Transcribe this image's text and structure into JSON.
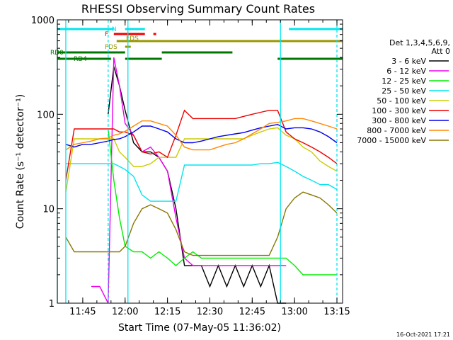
{
  "chart_data": {
    "type": "line",
    "title": "RHESSI Observing Summary Count Rates",
    "xlabel": "Start Time (07-May-05 11:36:02)",
    "ylabel": "Count Rate (s⁻¹ detector⁻¹)",
    "yscale": "log",
    "ylim": [
      1,
      1000
    ],
    "xlim": [
      "11:36",
      "13:17"
    ],
    "x_ticks": [
      "11:45",
      "12:00",
      "12:15",
      "12:30",
      "12:45",
      "13:00",
      "13:15"
    ],
    "y_ticks": [
      "1",
      "10",
      "100",
      "1000"
    ],
    "legend_header": [
      "Det 1,3,4,5,6,9,",
      "Att 0"
    ],
    "legend_position": "right",
    "footer": "16-Oct-2021 17:21",
    "flags": [
      {
        "label": "N",
        "color": "#00e5ee",
        "segments": [
          [
            "11:36",
            "11:56"
          ],
          [
            "12:00",
            "12:07"
          ],
          [
            "12:58",
            "13:17"
          ]
        ]
      },
      {
        "label": "F",
        "color": "#ee0000",
        "segments": [
          [
            "11:56",
            "12:07"
          ],
          [
            "12:10",
            "12:11"
          ]
        ]
      },
      {
        "label": "FDS",
        "color": "#999900",
        "segments": [
          [
            "11:57",
            "13:17"
          ]
        ]
      },
      {
        "label": "FDS",
        "color": "#999900",
        "segments": [
          [
            "12:00",
            "12:02"
          ]
        ]
      },
      {
        "label": "RD0",
        "color": "#007700",
        "segments": [
          [
            "11:36",
            "12:00"
          ],
          [
            "12:13",
            "12:38"
          ]
        ]
      },
      {
        "label": "RD4",
        "color": "#007700",
        "segments": [
          [
            "11:36",
            "11:55"
          ],
          [
            "12:00",
            "12:13"
          ],
          [
            "12:54",
            "13:17"
          ]
        ]
      }
    ],
    "vlines": [
      {
        "x": "11:36",
        "style": "solid"
      },
      {
        "x": "11:39",
        "style": "solid"
      },
      {
        "x": "11:54",
        "style": "dashed"
      },
      {
        "x": "12:01",
        "style": "solid"
      },
      {
        "x": "12:55",
        "style": "solid"
      },
      {
        "x": "13:15",
        "style": "dashed"
      }
    ],
    "x": [
      "11:36",
      "11:39",
      "11:42",
      "11:45",
      "11:48",
      "11:51",
      "11:54",
      "11:56",
      "11:58",
      "12:00",
      "12:03",
      "12:06",
      "12:09",
      "12:12",
      "12:15",
      "12:18",
      "12:21",
      "12:24",
      "12:27",
      "12:30",
      "12:33",
      "12:36",
      "12:39",
      "12:42",
      "12:45",
      "12:48",
      "12:51",
      "12:54",
      "12:57",
      "13:00",
      "13:03",
      "13:06",
      "13:09",
      "13:12",
      "13:15"
    ],
    "series": [
      {
        "name": "3 - 6 keV",
        "color": "#000000",
        "values": [
          null,
          null,
          null,
          null,
          null,
          null,
          100,
          320,
          200,
          110,
          50,
          40,
          40,
          35,
          25,
          10,
          2.5,
          2.5,
          2.5,
          1.5,
          2.5,
          1.5,
          2.5,
          1.5,
          2.5,
          1.5,
          2.5,
          1,
          1,
          null,
          null,
          null,
          null,
          null,
          null
        ]
      },
      {
        "name": "6 - 12 keV",
        "color": "#ee00ee",
        "values": [
          null,
          null,
          null,
          null,
          1.5,
          1.5,
          1,
          400,
          200,
          80,
          60,
          40,
          45,
          35,
          25,
          8,
          3,
          2.5,
          2.5,
          2.5,
          2.5,
          2.5,
          2.5,
          2.5,
          2.5,
          2.5,
          2.5,
          2.5,
          2.5,
          null,
          null,
          null,
          null,
          null,
          null
        ]
      },
      {
        "name": "12 - 25 keV",
        "color": "#00ee00",
        "values": [
          null,
          null,
          null,
          null,
          null,
          null,
          70,
          20,
          8,
          4,
          3.5,
          3.5,
          3,
          3.5,
          3,
          2.5,
          3,
          3.5,
          3,
          3,
          3,
          3,
          3,
          3,
          3,
          3,
          3,
          3,
          3,
          2.5,
          2,
          2,
          2,
          2,
          2
        ]
      },
      {
        "name": "25 - 50 keV",
        "color": "#00e5ee",
        "values": [
          null,
          30,
          30,
          30,
          30,
          30,
          30,
          30,
          28,
          26,
          22,
          14,
          12,
          12,
          12,
          12,
          29,
          29,
          29,
          29,
          29,
          29,
          29,
          29,
          29,
          30,
          30,
          31,
          28,
          25,
          22,
          20,
          18,
          18,
          16
        ]
      },
      {
        "name": "50 - 100 keV",
        "color": "#cccc00",
        "values": [
          null,
          15,
          55,
          55,
          55,
          55,
          55,
          55,
          40,
          35,
          28,
          28,
          30,
          35,
          35,
          35,
          55,
          55,
          55,
          55,
          55,
          55,
          55,
          55,
          60,
          65,
          70,
          72,
          60,
          55,
          45,
          40,
          32,
          28,
          25
        ]
      },
      {
        "name": "100 - 300 keV",
        "color": "#ee0000",
        "values": [
          null,
          20,
          70,
          70,
          70,
          70,
          70,
          70,
          65,
          65,
          60,
          40,
          38,
          40,
          35,
          60,
          110,
          90,
          90,
          90,
          90,
          90,
          90,
          95,
          100,
          105,
          110,
          110,
          65,
          55,
          50,
          45,
          40,
          35,
          30
        ]
      },
      {
        "name": "300 - 800 keV",
        "color": "#0000ee",
        "values": [
          null,
          48,
          45,
          48,
          48,
          50,
          52,
          54,
          55,
          58,
          65,
          75,
          75,
          70,
          65,
          55,
          50,
          50,
          52,
          55,
          58,
          60,
          62,
          64,
          68,
          72,
          75,
          78,
          70,
          72,
          72,
          70,
          65,
          58,
          50
        ]
      },
      {
        "name": "800 - 7000 keV",
        "color": "#ff8800",
        "values": [
          null,
          42,
          48,
          50,
          52,
          55,
          56,
          60,
          62,
          66,
          75,
          85,
          85,
          80,
          75,
          60,
          45,
          42,
          42,
          42,
          45,
          48,
          50,
          55,
          62,
          70,
          80,
          82,
          85,
          90,
          90,
          85,
          80,
          75,
          70
        ]
      },
      {
        "name": "7000 - 15000 keV",
        "color": "#887700",
        "values": [
          null,
          5,
          3.5,
          3.5,
          3.5,
          3.5,
          3.5,
          3.5,
          3.5,
          4,
          7,
          10,
          11,
          10,
          9,
          6,
          3.5,
          3.2,
          3.2,
          3.2,
          3.2,
          3.2,
          3.2,
          3.2,
          3.2,
          3.2,
          3.2,
          5,
          10,
          13,
          15,
          14,
          13,
          11,
          9
        ]
      }
    ]
  }
}
